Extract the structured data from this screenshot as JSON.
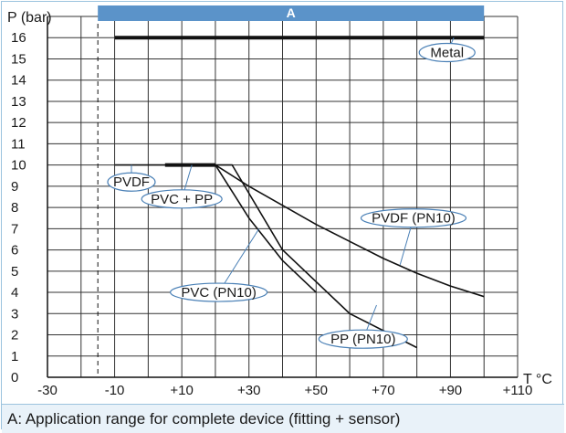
{
  "chart_data": {
    "type": "line",
    "ylabel": "P (bar)",
    "xlabel": "T °C",
    "xlim": [
      -30,
      110
    ],
    "ylim": [
      0,
      17
    ],
    "xticks": [
      -30,
      -10,
      10,
      30,
      50,
      70,
      90,
      110
    ],
    "xtick_labels": [
      "-30",
      "-10",
      "+10",
      "+30",
      "+50",
      "+70",
      "+90",
      "+110"
    ],
    "yticks": [
      0,
      1,
      2,
      3,
      4,
      5,
      6,
      7,
      8,
      9,
      10,
      11,
      12,
      13,
      14,
      15,
      16
    ],
    "ytick_labels": [
      "0",
      "1",
      "2",
      "3",
      "4",
      "5",
      "6",
      "7",
      "8",
      "9",
      "10",
      "11",
      "12",
      "13",
      "14",
      "15",
      "16"
    ],
    "grid": true,
    "min_temperature_marker": -15,
    "range_band": {
      "label": "A",
      "from": -15,
      "to": 100,
      "color": "#5b93c9"
    },
    "series": [
      {
        "name": "Metal",
        "style": "thick",
        "x": [
          -10,
          100
        ],
        "y": [
          16,
          16
        ],
        "label_at": [
          89,
          15.3
        ]
      },
      {
        "name": "PVDF",
        "style": "thin",
        "x": [
          -10,
          20
        ],
        "y": [
          10,
          10
        ],
        "label_at": [
          -5,
          9.2
        ]
      },
      {
        "name": "PVC + PP",
        "style": "thick",
        "x": [
          5,
          20
        ],
        "y": [
          10,
          10
        ],
        "label_at": [
          10,
          8.4
        ]
      },
      {
        "name": "PVDF (PN10)",
        "style": "thin",
        "x": [
          20,
          30,
          40,
          50,
          60,
          70,
          80,
          90,
          100
        ],
        "y": [
          10,
          9.0,
          8.1,
          7.2,
          6.4,
          5.6,
          4.9,
          4.3,
          3.8
        ],
        "label_at": [
          79,
          7.5
        ]
      },
      {
        "name": "PVC (PN10)",
        "style": "thin",
        "x": [
          20,
          30,
          40,
          50
        ],
        "y": [
          10,
          7.5,
          5.5,
          4.0
        ],
        "label_at": [
          21,
          4.0
        ]
      },
      {
        "name": "PP (PN10)",
        "style": "thin",
        "x": [
          20,
          25,
          40,
          60,
          80
        ],
        "y": [
          10,
          10,
          6.0,
          3.0,
          1.4
        ],
        "label_at": [
          64,
          1.8
        ]
      }
    ],
    "footnote": "A: Application range for complete device (fitting + sensor)"
  }
}
